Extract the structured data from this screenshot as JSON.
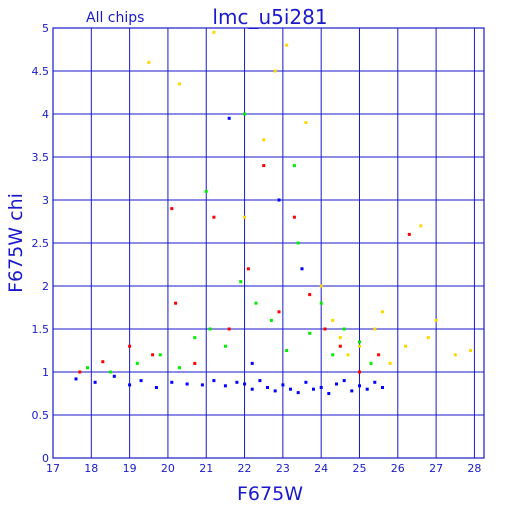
{
  "chart_data": {
    "type": "scatter",
    "title": "lmc_u5i281",
    "subtitle": "All chips",
    "xlabel": "F675W",
    "ylabel": "F675W chi",
    "xlim": [
      17,
      28.25
    ],
    "ylim": [
      0,
      5
    ],
    "x_ticks": [
      17,
      18,
      19,
      20,
      21,
      22,
      23,
      24,
      25,
      26,
      27,
      28
    ],
    "y_ticks": [
      0,
      0.5,
      1,
      1.5,
      2,
      2.5,
      3,
      3.5,
      4,
      4.5,
      5
    ],
    "grid": true,
    "legend": "none",
    "series": [
      {
        "color": "#0000ff",
        "points": [
          [
            17.6,
            0.92
          ],
          [
            18.1,
            0.88
          ],
          [
            18.6,
            0.95
          ],
          [
            19.0,
            0.85
          ],
          [
            19.3,
            0.9
          ],
          [
            19.7,
            0.82
          ],
          [
            20.1,
            0.88
          ],
          [
            20.5,
            0.86
          ],
          [
            20.9,
            0.85
          ],
          [
            21.2,
            0.9
          ],
          [
            21.5,
            0.84
          ],
          [
            21.8,
            0.88
          ],
          [
            22.0,
            0.86
          ],
          [
            22.2,
            0.8
          ],
          [
            22.4,
            0.9
          ],
          [
            22.6,
            0.82
          ],
          [
            22.8,
            0.78
          ],
          [
            23.0,
            0.85
          ],
          [
            23.2,
            0.8
          ],
          [
            23.4,
            0.76
          ],
          [
            23.6,
            0.88
          ],
          [
            23.8,
            0.8
          ],
          [
            24.0,
            0.82
          ],
          [
            24.2,
            0.75
          ],
          [
            24.4,
            0.86
          ],
          [
            24.6,
            0.9
          ],
          [
            24.8,
            0.78
          ],
          [
            25.0,
            0.84
          ],
          [
            25.2,
            0.8
          ],
          [
            25.4,
            0.88
          ],
          [
            25.6,
            0.82
          ],
          [
            21.6,
            3.95
          ],
          [
            22.2,
            1.1
          ],
          [
            22.9,
            3.0
          ],
          [
            23.5,
            2.2
          ]
        ]
      },
      {
        "color": "#00ee00",
        "points": [
          [
            17.9,
            1.05
          ],
          [
            18.5,
            1.0
          ],
          [
            19.2,
            1.1
          ],
          [
            19.8,
            1.2
          ],
          [
            20.3,
            1.05
          ],
          [
            20.7,
            1.4
          ],
          [
            21.1,
            1.5
          ],
          [
            21.5,
            1.3
          ],
          [
            21.9,
            2.05
          ],
          [
            22.3,
            1.8
          ],
          [
            22.7,
            1.6
          ],
          [
            23.1,
            1.25
          ],
          [
            23.4,
            2.5
          ],
          [
            23.7,
            1.45
          ],
          [
            24.0,
            1.8
          ],
          [
            24.3,
            1.2
          ],
          [
            24.6,
            1.5
          ],
          [
            25.0,
            1.35
          ],
          [
            25.3,
            1.1
          ],
          [
            21.0,
            3.1
          ],
          [
            22.0,
            4.0
          ],
          [
            23.3,
            3.4
          ]
        ]
      },
      {
        "color": "#ff0000",
        "points": [
          [
            17.7,
            1.0
          ],
          [
            18.3,
            1.12
          ],
          [
            19.0,
            1.3
          ],
          [
            19.6,
            1.2
          ],
          [
            20.2,
            1.8
          ],
          [
            20.7,
            1.1
          ],
          [
            21.2,
            2.8
          ],
          [
            21.6,
            1.5
          ],
          [
            22.1,
            2.2
          ],
          [
            22.5,
            3.4
          ],
          [
            22.9,
            1.7
          ],
          [
            23.3,
            2.8
          ],
          [
            23.7,
            1.9
          ],
          [
            24.1,
            1.5
          ],
          [
            24.5,
            1.3
          ],
          [
            25.0,
            1.0
          ],
          [
            25.5,
            1.2
          ],
          [
            26.3,
            2.6
          ],
          [
            20.1,
            2.9
          ]
        ]
      },
      {
        "color": "#ffd800",
        "points": [
          [
            19.5,
            4.6
          ],
          [
            20.3,
            4.35
          ],
          [
            21.2,
            4.95
          ],
          [
            22.0,
            2.8
          ],
          [
            22.5,
            3.7
          ],
          [
            22.8,
            4.5
          ],
          [
            23.1,
            4.8
          ],
          [
            23.6,
            3.9
          ],
          [
            24.0,
            2.0
          ],
          [
            24.3,
            1.6
          ],
          [
            24.5,
            1.4
          ],
          [
            24.7,
            1.2
          ],
          [
            25.0,
            1.3
          ],
          [
            25.4,
            1.5
          ],
          [
            25.8,
            1.1
          ],
          [
            26.2,
            1.3
          ],
          [
            26.6,
            2.7
          ],
          [
            27.0,
            1.6
          ],
          [
            27.5,
            1.2
          ],
          [
            27.9,
            1.25
          ],
          [
            26.8,
            1.4
          ],
          [
            25.6,
            1.7
          ]
        ]
      }
    ]
  }
}
